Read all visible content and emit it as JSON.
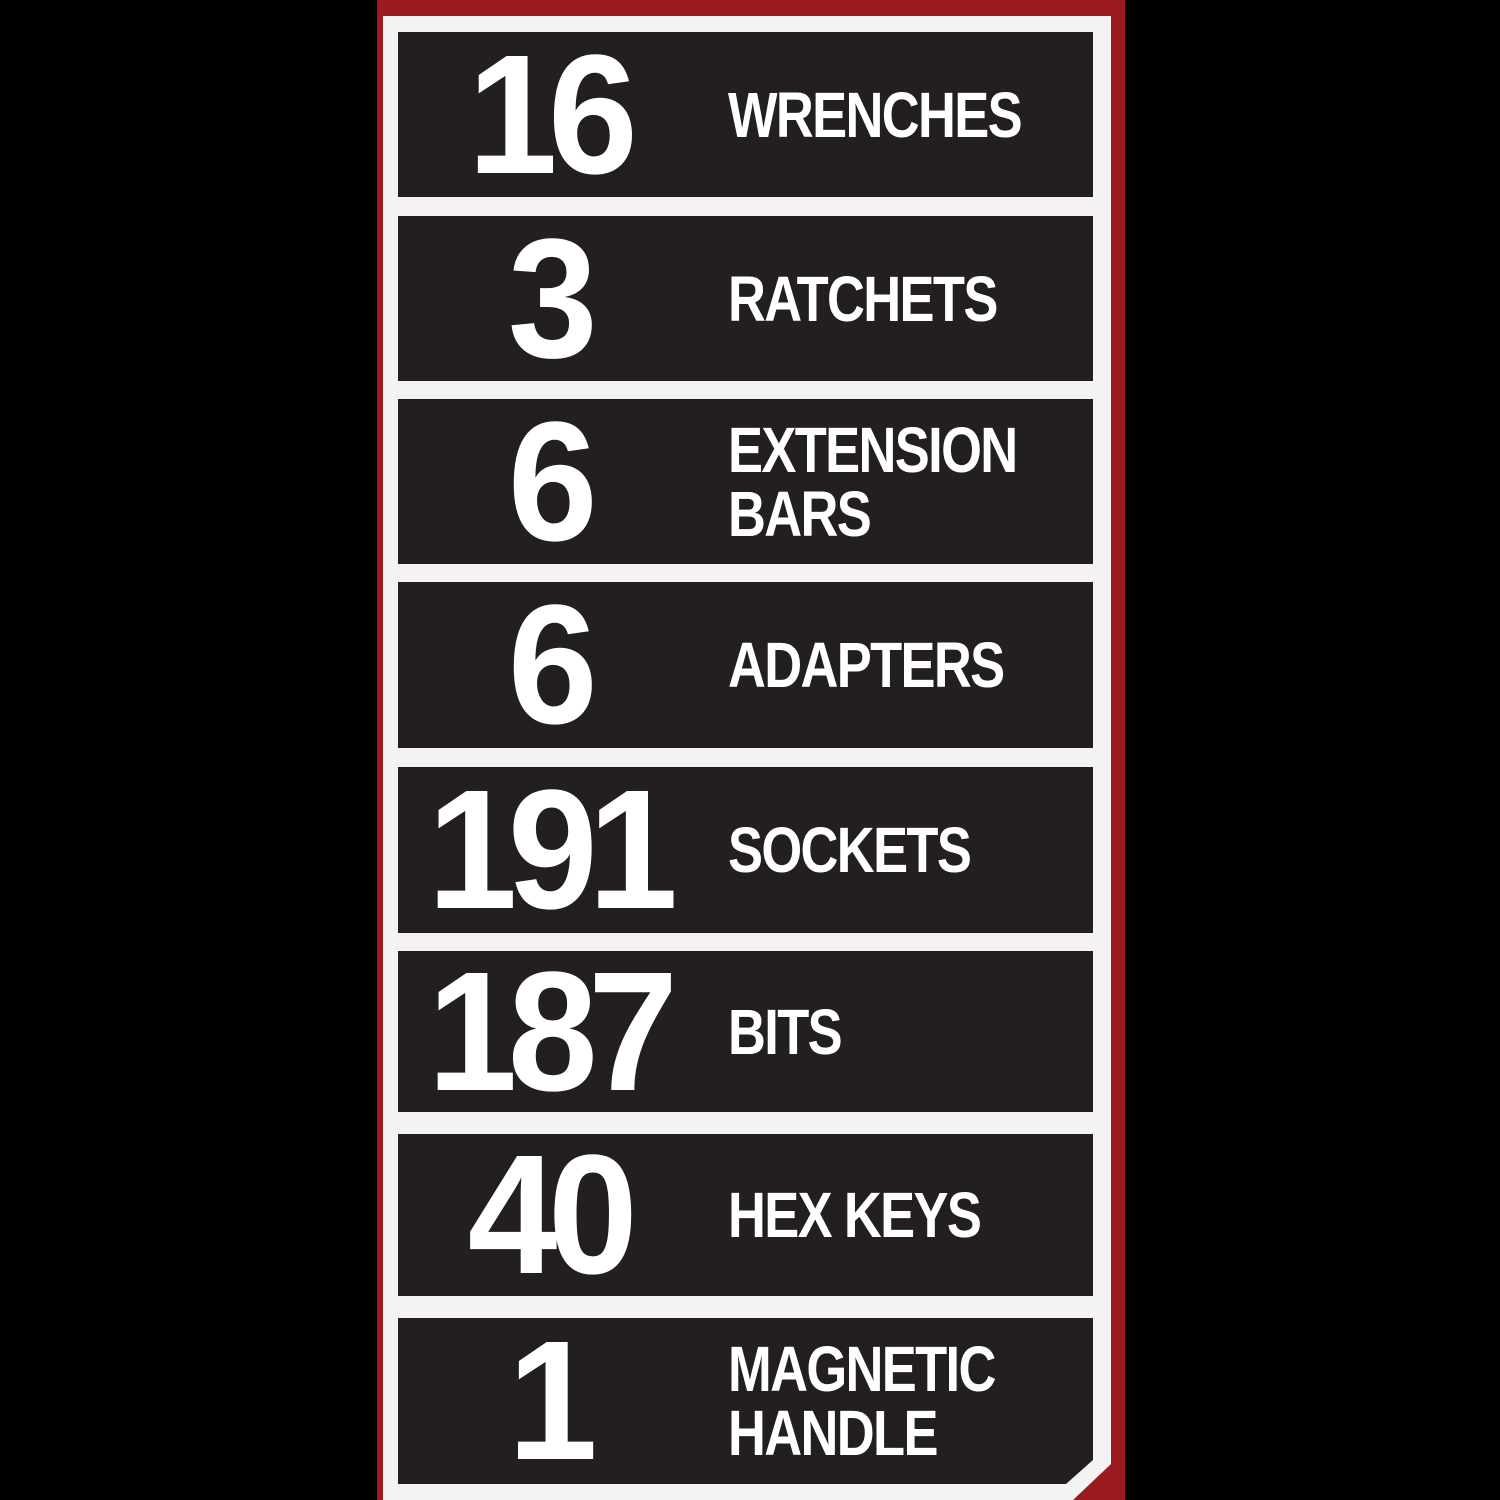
{
  "colors": {
    "border": "#9b1c1f",
    "frame": "#f4f2f2",
    "row": "#231f20",
    "text": "#ffffff"
  },
  "items": [
    {
      "count": "16",
      "label": "WRENCHES"
    },
    {
      "count": "3",
      "label": "RATCHETS"
    },
    {
      "count": "6",
      "label": "EXTENSION\nBARS"
    },
    {
      "count": "6",
      "label": "ADAPTERS"
    },
    {
      "count": "191",
      "label": "SOCKETS"
    },
    {
      "count": "187",
      "label": "BITS"
    },
    {
      "count": "40",
      "label": "HEX KEYS"
    },
    {
      "count": "1",
      "label": "MAGNETIC\nHANDLE"
    }
  ]
}
